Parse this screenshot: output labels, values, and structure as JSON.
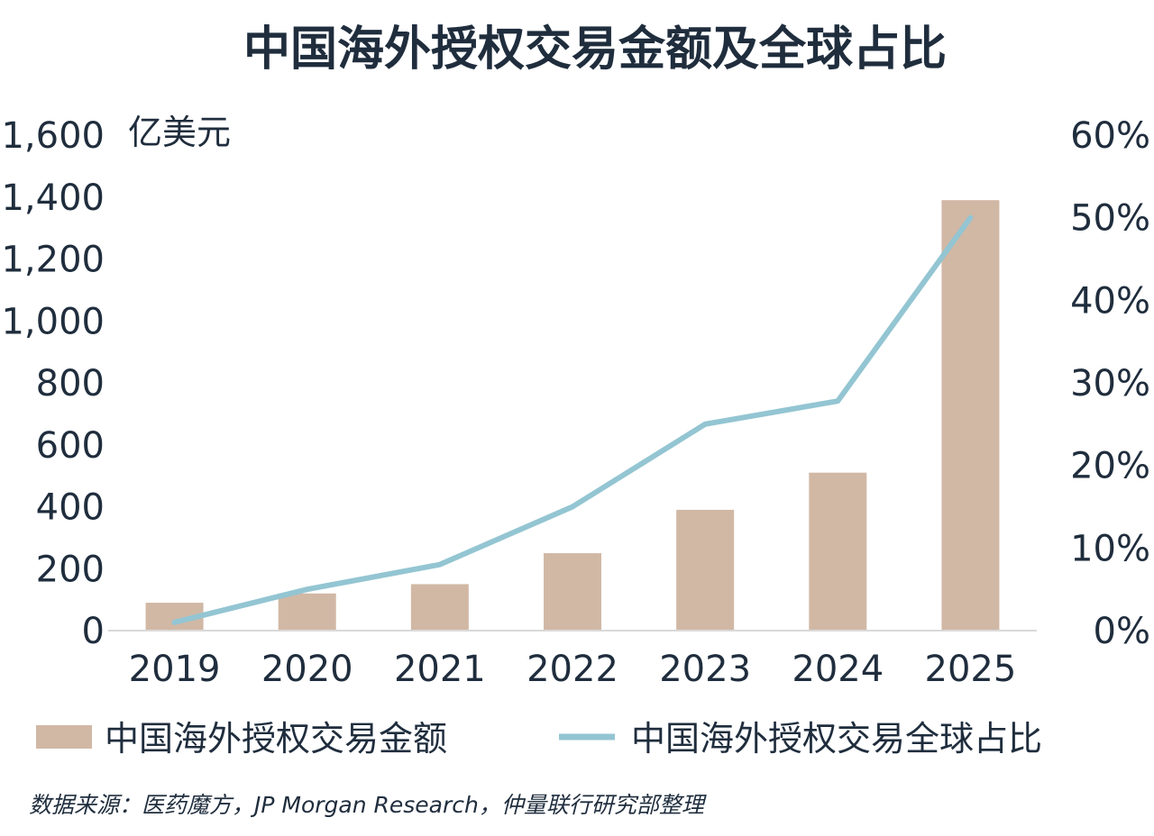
{
  "chart_data": {
    "type": "bar",
    "title": "中国海外授权交易金额及全球占比",
    "y_unit_label": "亿美元",
    "categories": [
      "2019",
      "2020",
      "2021",
      "2022",
      "2023",
      "2024",
      "2025"
    ],
    "series": [
      {
        "name": "中国海外授权交易金额",
        "type": "bar",
        "axis": "left",
        "color": "#d1b8a5",
        "values": [
          90,
          120,
          150,
          250,
          390,
          510,
          1390
        ]
      },
      {
        "name": "中国海外授权交易全球占比",
        "type": "line",
        "axis": "right",
        "color": "#93c5d2",
        "values": [
          0.01,
          0.05,
          0.08,
          0.15,
          0.25,
          0.278,
          0.5
        ]
      }
    ],
    "y_left": {
      "min": 0,
      "max": 1600,
      "ticks": [
        0,
        200,
        400,
        600,
        800,
        1000,
        1200,
        1400,
        1600
      ],
      "tick_labels": [
        "0",
        "200",
        "400",
        "600",
        "800",
        "1,000",
        "1,200",
        "1,400",
        "1,600"
      ]
    },
    "y_right": {
      "min": 0,
      "max": 0.6,
      "ticks": [
        0,
        0.1,
        0.2,
        0.3,
        0.4,
        0.5,
        0.6
      ],
      "tick_labels": [
        "0%",
        "10%",
        "20%",
        "30%",
        "40%",
        "50%",
        "60%"
      ]
    },
    "grid": false,
    "legend_position": "bottom",
    "source": "数据来源：医药魔方，JP Morgan Research，仲量联行研究部整理"
  }
}
